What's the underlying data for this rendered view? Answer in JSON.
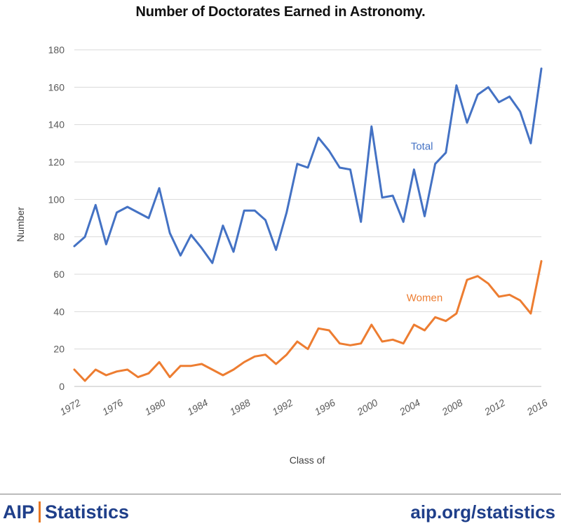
{
  "header": {
    "title": "Number of Doctorates Earned in Astronomy."
  },
  "footer": {
    "logo_primary": "AIP",
    "logo_secondary": "Statistics",
    "url": "aip.org/statistics"
  },
  "colors": {
    "total": "#4472c4",
    "women": "#ed7d31",
    "grid": "#d9d9d9",
    "text": "#595959"
  },
  "chart_data": {
    "type": "line",
    "title": "Number of Doctorates Earned in Astronomy.",
    "xlabel": "Class of",
    "ylabel": "Number",
    "ylim": [
      0,
      180
    ],
    "yticks": [
      0,
      20,
      40,
      60,
      80,
      100,
      120,
      140,
      160,
      180
    ],
    "xlim": [
      1972,
      2016
    ],
    "xticks": [
      1972,
      1976,
      1980,
      1984,
      1988,
      1992,
      1996,
      2000,
      2004,
      2008,
      2012,
      2016
    ],
    "x": [
      1972,
      1973,
      1974,
      1975,
      1976,
      1977,
      1978,
      1979,
      1980,
      1981,
      1982,
      1983,
      1984,
      1985,
      1986,
      1987,
      1988,
      1989,
      1990,
      1991,
      1992,
      1993,
      1994,
      1995,
      1996,
      1997,
      1998,
      1999,
      2000,
      2001,
      2002,
      2003,
      2004,
      2005,
      2006,
      2007,
      2008,
      2009,
      2010,
      2011,
      2012,
      2013,
      2014,
      2015,
      2016
    ],
    "grid": "horizontal",
    "series": [
      {
        "name": "Total",
        "color": "#4472c4",
        "values": [
          75,
          80,
          97,
          76,
          93,
          96,
          93,
          90,
          106,
          82,
          70,
          81,
          74,
          66,
          86,
          72,
          94,
          94,
          89,
          73,
          93,
          119,
          117,
          133,
          126,
          117,
          116,
          88,
          139,
          101,
          102,
          88,
          116,
          91,
          119,
          125,
          161,
          141,
          156,
          160,
          152,
          155,
          147,
          130,
          170
        ]
      },
      {
        "name": "Women",
        "color": "#ed7d31",
        "values": [
          9,
          3,
          9,
          6,
          8,
          9,
          5,
          7,
          13,
          5,
          11,
          11,
          12,
          9,
          6,
          9,
          13,
          16,
          17,
          12,
          17,
          24,
          20,
          31,
          30,
          23,
          22,
          23,
          33,
          24,
          25,
          23,
          33,
          30,
          37,
          35,
          39,
          57,
          59,
          55,
          48,
          49,
          46,
          39,
          67
        ]
      }
    ]
  }
}
